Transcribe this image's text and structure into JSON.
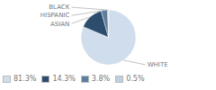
{
  "chart_data": {
    "type": "pie",
    "categories": [
      "WHITE",
      "ASIAN",
      "HISPANIC",
      "BLACK"
    ],
    "values": [
      81.3,
      14.3,
      3.8,
      0.5
    ],
    "value_labels": [
      "81.3%",
      "14.3%",
      "3.8%",
      "0.5%"
    ],
    "colors": [
      "#cfdded",
      "#2d4d6e",
      "#5d7f9e",
      "#c0d0de"
    ],
    "legend": "lower left"
  }
}
